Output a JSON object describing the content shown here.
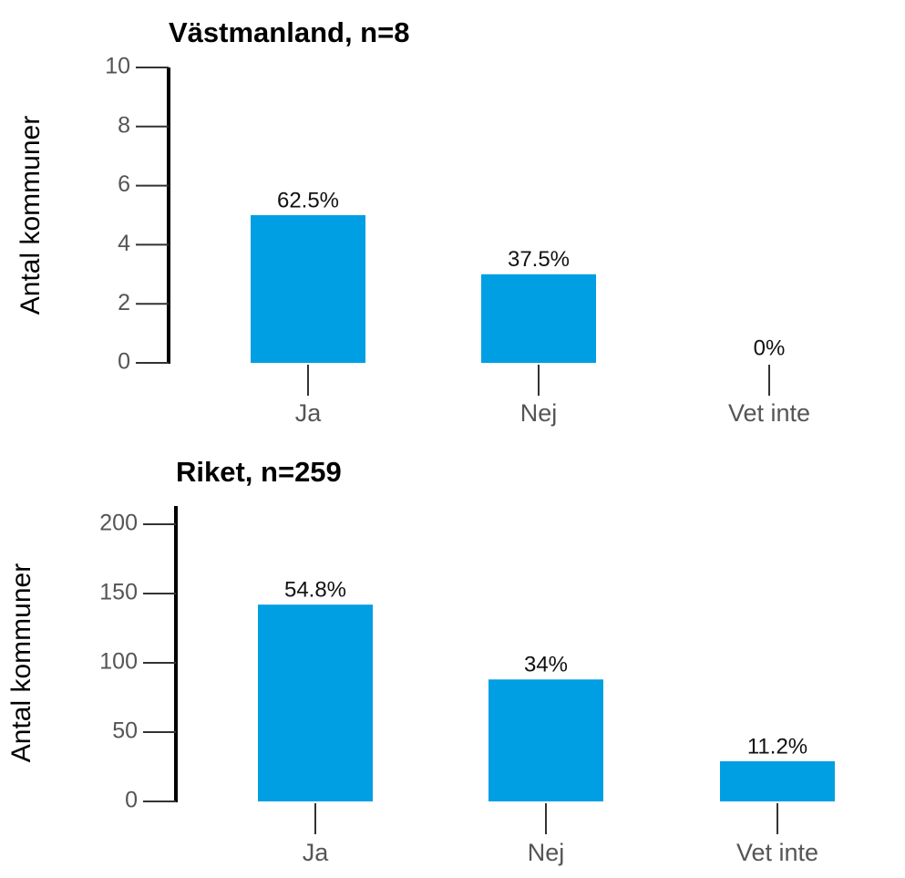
{
  "chart_data": [
    {
      "type": "bar",
      "title": "Västmanland, n=8",
      "y_label": "Antal kommuner",
      "categories": [
        "Ja",
        "Nej",
        "Vet inte"
      ],
      "values": [
        5,
        3,
        0
      ],
      "value_labels": [
        "62.5%",
        "37.5%",
        "0%"
      ],
      "color": "#009fe3",
      "ylim": [
        0,
        10
      ],
      "yticks": [
        0,
        2,
        4,
        6,
        8,
        10
      ]
    },
    {
      "type": "bar",
      "title": "Riket, n=259",
      "y_label": "Antal kommuner",
      "categories": [
        "Ja",
        "Nej",
        "Vet inte"
      ],
      "values": [
        142,
        88,
        29
      ],
      "value_labels": [
        "54.8%",
        "34%",
        "11.2%"
      ],
      "color": "#009fe3",
      "ylim": [
        0,
        200
      ],
      "yticks": [
        0,
        50,
        100,
        150,
        200
      ]
    }
  ]
}
